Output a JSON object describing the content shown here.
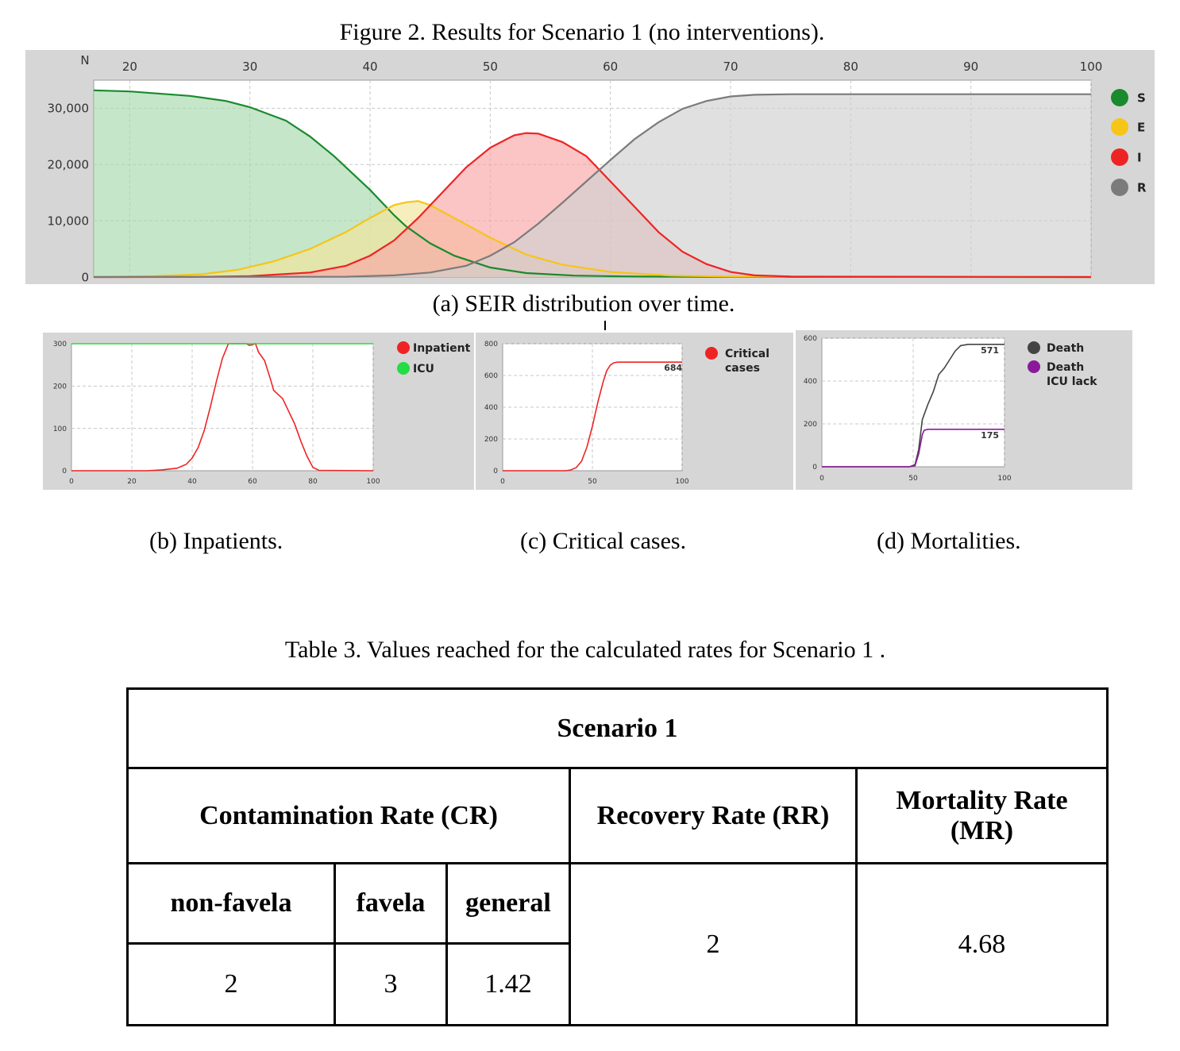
{
  "figure": {
    "title": "Figure 2. Results for Scenario 1 (no interventions).",
    "seir": {
      "caption": "(a)  SEIR distribution over time.",
      "chart_data": {
        "type": "area",
        "y_axis_label": "N",
        "x_ticks": [
          "20",
          "30",
          "40",
          "50",
          "60",
          "70",
          "80",
          "90",
          "100"
        ],
        "y_ticks": [
          "0",
          "10,000",
          "20,000",
          "30,000"
        ],
        "xlim": [
          17,
          100
        ],
        "ylim": [
          0,
          35000
        ],
        "grid": true,
        "legend_position": "right",
        "series": [
          {
            "name": "S",
            "color": "#1a8a2e",
            "fill": "#a8d8ad",
            "points": [
              [
                17,
                33200
              ],
              [
                20,
                33000
              ],
              [
                25,
                32200
              ],
              [
                28,
                31300
              ],
              [
                30,
                30200
              ],
              [
                33,
                27800
              ],
              [
                35,
                25000
              ],
              [
                37,
                21500
              ],
              [
                40,
                15500
              ],
              [
                42,
                11000
              ],
              [
                43,
                9000
              ],
              [
                45,
                6000
              ],
              [
                47,
                3800
              ],
              [
                50,
                1700
              ],
              [
                53,
                700
              ],
              [
                57,
                250
              ],
              [
                62,
                80
              ],
              [
                70,
                20
              ],
              [
                100,
                0
              ]
            ]
          },
          {
            "name": "E",
            "color": "#f5c518",
            "fill": "#f3e59a",
            "points": [
              [
                17,
                0
              ],
              [
                22,
                150
              ],
              [
                26,
                500
              ],
              [
                29,
                1300
              ],
              [
                32,
                2800
              ],
              [
                35,
                5000
              ],
              [
                38,
                8000
              ],
              [
                40,
                10500
              ],
              [
                42,
                12800
              ],
              [
                43,
                13300
              ],
              [
                44,
                13500
              ],
              [
                45,
                12800
              ],
              [
                47,
                10500
              ],
              [
                50,
                7000
              ],
              [
                53,
                4000
              ],
              [
                56,
                2200
              ],
              [
                60,
                900
              ],
              [
                65,
                250
              ],
              [
                70,
                80
              ],
              [
                100,
                0
              ]
            ]
          },
          {
            "name": "I",
            "color": "#ee2424",
            "fill": "#f9a6a6",
            "points": [
              [
                17,
                0
              ],
              [
                25,
                20
              ],
              [
                30,
                150
              ],
              [
                35,
                800
              ],
              [
                38,
                2000
              ],
              [
                40,
                3800
              ],
              [
                42,
                6500
              ],
              [
                44,
                10500
              ],
              [
                46,
                15000
              ],
              [
                48,
                19500
              ],
              [
                50,
                23000
              ],
              [
                52,
                25200
              ],
              [
                53,
                25600
              ],
              [
                54,
                25500
              ],
              [
                56,
                24000
              ],
              [
                58,
                21500
              ],
              [
                60,
                17000
              ],
              [
                62,
                12500
              ],
              [
                64,
                8000
              ],
              [
                66,
                4500
              ],
              [
                68,
                2300
              ],
              [
                70,
                900
              ],
              [
                72,
                300
              ],
              [
                75,
                80
              ],
              [
                100,
                0
              ]
            ]
          },
          {
            "name": "R",
            "color": "#7b7b7b",
            "fill": "#cfcfcf",
            "points": [
              [
                17,
                0
              ],
              [
                38,
                50
              ],
              [
                42,
                300
              ],
              [
                45,
                800
              ],
              [
                48,
                2000
              ],
              [
                50,
                3800
              ],
              [
                52,
                6200
              ],
              [
                54,
                9500
              ],
              [
                56,
                13200
              ],
              [
                58,
                17000
              ],
              [
                60,
                20800
              ],
              [
                62,
                24500
              ],
              [
                64,
                27500
              ],
              [
                66,
                29900
              ],
              [
                68,
                31300
              ],
              [
                70,
                32100
              ],
              [
                72,
                32400
              ],
              [
                75,
                32500
              ],
              [
                100,
                32500
              ]
            ]
          }
        ]
      }
    },
    "inpatients": {
      "caption": "(b)  Inpatients.",
      "chart_data": {
        "type": "line",
        "x_ticks": [
          "0",
          "20",
          "40",
          "60",
          "80",
          "100"
        ],
        "y_ticks": [
          "0",
          "100",
          "200",
          "300"
        ],
        "xlim": [
          0,
          100
        ],
        "ylim": [
          0,
          300
        ],
        "grid": true,
        "legend_position": "right",
        "series": [
          {
            "name": "Inpatient",
            "color": "#ee2424",
            "points": [
              [
                0,
                0
              ],
              [
                25,
                0
              ],
              [
                30,
                2
              ],
              [
                35,
                6
              ],
              [
                38,
                15
              ],
              [
                40,
                30
              ],
              [
                42,
                55
              ],
              [
                44,
                95
              ],
              [
                46,
                150
              ],
              [
                48,
                210
              ],
              [
                50,
                265
              ],
              [
                52,
                300
              ],
              [
                55,
                300
              ],
              [
                58,
                300
              ],
              [
                59,
                296
              ],
              [
                61,
                300
              ],
              [
                62,
                280
              ],
              [
                64,
                260
              ],
              [
                66,
                215
              ],
              [
                67,
                190
              ],
              [
                70,
                170
              ],
              [
                72,
                140
              ],
              [
                74,
                110
              ],
              [
                76,
                70
              ],
              [
                78,
                35
              ],
              [
                80,
                8
              ],
              [
                82,
                1
              ],
              [
                100,
                0
              ]
            ]
          },
          {
            "name": "ICU",
            "color": "#22dd44",
            "points": [
              [
                0,
                300
              ],
              [
                100,
                300
              ]
            ]
          }
        ]
      }
    },
    "critical": {
      "caption": "(c)  Critical cases.",
      "chart_data": {
        "type": "line",
        "x_ticks": [
          "0",
          "50",
          "100"
        ],
        "y_ticks": [
          "0",
          "200",
          "400",
          "600",
          "800"
        ],
        "xlim": [
          0,
          100
        ],
        "ylim": [
          0,
          800
        ],
        "grid": true,
        "legend_position": "right",
        "series": [
          {
            "name": "Critical cases",
            "color": "#ee2424",
            "points": [
              [
                0,
                0
              ],
              [
                35,
                0
              ],
              [
                38,
                5
              ],
              [
                41,
                20
              ],
              [
                44,
                60
              ],
              [
                47,
                150
              ],
              [
                50,
                280
              ],
              [
                53,
                430
              ],
              [
                56,
                560
              ],
              [
                58,
                630
              ],
              [
                60,
                665
              ],
              [
                62,
                680
              ],
              [
                64,
                684
              ],
              [
                100,
                684
              ]
            ]
          }
        ],
        "annotations": [
          {
            "label": "684",
            "x": 95,
            "y": 684
          }
        ]
      }
    },
    "mortalities": {
      "caption": "(d)  Mortalities.",
      "chart_data": {
        "type": "line",
        "x_ticks": [
          "0",
          "50",
          "100"
        ],
        "y_ticks": [
          "0",
          "200",
          "400",
          "600"
        ],
        "xlim": [
          0,
          100
        ],
        "ylim": [
          0,
          600
        ],
        "grid": true,
        "legend_position": "right",
        "series": [
          {
            "name": "Death",
            "color": "#444444",
            "points": [
              [
                0,
                0
              ],
              [
                48,
                0
              ],
              [
                51,
                10
              ],
              [
                53,
                80
              ],
              [
                55,
                220
              ],
              [
                58,
                290
              ],
              [
                61,
                350
              ],
              [
                64,
                430
              ],
              [
                67,
                460
              ],
              [
                70,
                500
              ],
              [
                73,
                540
              ],
              [
                76,
                565
              ],
              [
                80,
                571
              ],
              [
                100,
                571
              ]
            ]
          },
          {
            "name": "Death ICU lack",
            "color": "#8a1a9a",
            "points": [
              [
                0,
                0
              ],
              [
                48,
                0
              ],
              [
                51,
                5
              ],
              [
                53,
                60
              ],
              [
                55,
                150
              ],
              [
                56,
                170
              ],
              [
                58,
                175
              ],
              [
                100,
                175
              ]
            ]
          }
        ],
        "annotations": [
          {
            "label": "571",
            "x": 92,
            "y": 571
          },
          {
            "label": "175",
            "x": 92,
            "y": 175
          }
        ]
      }
    }
  },
  "table": {
    "title": "Table 3. Values reached for the calculated rates for Scenario 1 .",
    "scenario": "Scenario 1",
    "headers": {
      "cr": "Contamination Rate (CR)",
      "rr": "Recovery Rate (RR)",
      "mr_line1": "Mortality Rate",
      "mr_line2": "(MR)"
    },
    "subheaders": {
      "nonfavela": "non-favela",
      "favela": "favela",
      "general": "general"
    },
    "values": {
      "nonfavela": "2",
      "favela": "3",
      "general": "1.42",
      "rr": "2",
      "mr": "4.68"
    }
  }
}
